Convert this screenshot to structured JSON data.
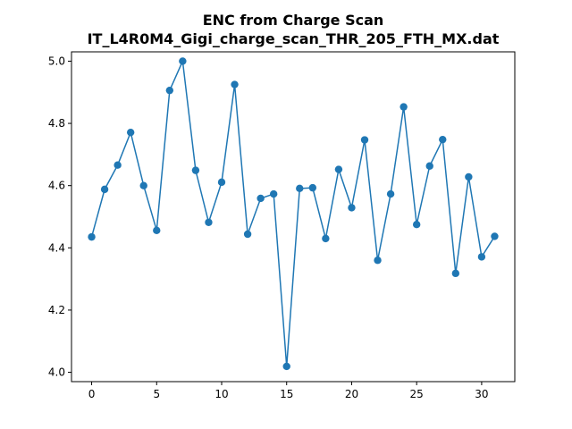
{
  "chart_data": {
    "type": "line",
    "title_line1": "ENC from Charge Scan",
    "title_line2": "IT_L4R0M4_Gigi_charge_scan_THR_205_FTH_MX.dat",
    "xlabel": "",
    "ylabel": "",
    "xlim": [
      -1.55,
      32.55
    ],
    "ylim": [
      3.97,
      5.03
    ],
    "xticks": [
      0,
      5,
      10,
      15,
      20,
      25,
      30
    ],
    "yticks": [
      4.0,
      4.2,
      4.4,
      4.6,
      4.8,
      5.0
    ],
    "grid": false,
    "marker": "circle",
    "color": "#1f77b4",
    "series": [
      {
        "x": [
          0,
          1,
          2,
          3,
          4,
          5,
          6,
          7,
          8,
          9,
          10,
          11,
          12,
          13,
          14,
          15,
          16,
          17,
          18,
          19,
          20,
          21,
          22,
          23,
          24,
          25,
          26,
          27,
          28,
          29,
          30,
          31
        ],
        "values": [
          4.435,
          4.588,
          4.666,
          4.771,
          4.6,
          4.456,
          4.906,
          5.0,
          4.649,
          4.482,
          4.611,
          4.925,
          4.444,
          4.559,
          4.573,
          4.019,
          4.591,
          4.593,
          4.43,
          4.652,
          4.529,
          4.747,
          4.36,
          4.573,
          4.853,
          4.475,
          4.663,
          4.748,
          4.318,
          4.628,
          4.371,
          4.437
        ]
      }
    ]
  }
}
